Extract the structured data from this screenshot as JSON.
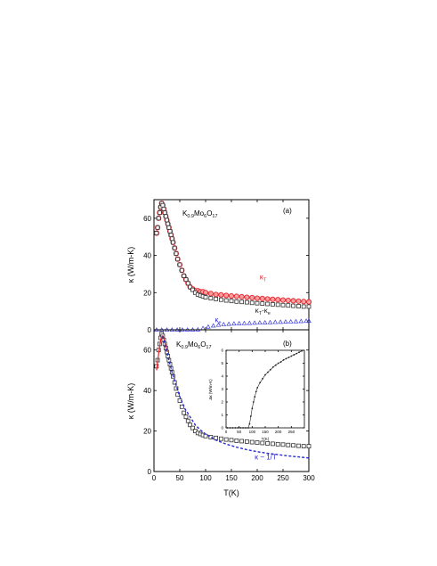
{
  "chart_data": [
    {
      "id": "a",
      "type": "scatter",
      "panel_label": "(a)",
      "title": {
        "main": "K",
        "s1": "0.9",
        "m1": "Mo",
        "s2": "6",
        "m2": "O",
        "s3": "17"
      },
      "xlabel": "",
      "ylabel": "κ (W/m-K)",
      "xlim": [
        0,
        300
      ],
      "ylim": [
        0,
        70
      ],
      "yticks": [
        0,
        20,
        40,
        60
      ],
      "grid": false,
      "colors": {
        "kT": "#e8202a",
        "kTke": "#333333",
        "ke": "#3b3bd6"
      },
      "annotations": [
        {
          "main": "κ",
          "sub": "T",
          "color": "#e8202a",
          "x": 205,
          "y": 27
        },
        {
          "main": "κ",
          "sub": "T",
          "main2": "-κ",
          "sub2": "e",
          "color": "#222222",
          "x": 196,
          "y": 9
        },
        {
          "main": "κ",
          "sub": "e",
          "color": "#2a2ad0",
          "x": 118,
          "y": 4
        }
      ],
      "series": [
        {
          "key": "kT",
          "marker": "circle",
          "x": [
            5,
            7,
            9,
            11,
            13,
            15,
            17,
            19,
            21,
            23,
            25,
            27,
            29,
            31,
            33,
            35,
            37,
            40,
            43,
            46,
            50,
            54,
            58,
            62,
            66,
            70,
            75,
            80,
            85,
            90,
            95,
            100,
            110,
            120,
            130,
            140,
            150,
            160,
            170,
            180,
            190,
            200,
            210,
            220,
            230,
            240,
            250,
            260,
            270,
            280,
            290,
            300
          ],
          "y": [
            52,
            55,
            60,
            63,
            66,
            68,
            67,
            65,
            63,
            61,
            59,
            57,
            55,
            53,
            51,
            49,
            47,
            44,
            41,
            38,
            35,
            32,
            29,
            27,
            25,
            23,
            22,
            21,
            21,
            20.5,
            20.5,
            20,
            19.5,
            19,
            18.8,
            18.5,
            18.2,
            18,
            17.8,
            17.5,
            17.3,
            17,
            16.8,
            16.6,
            16.4,
            16.2,
            16,
            15.8,
            15.6,
            15.4,
            15.2,
            15
          ]
        },
        {
          "key": "kTke",
          "marker": "square",
          "x": [
            5,
            7,
            9,
            11,
            13,
            15,
            17,
            19,
            21,
            23,
            25,
            27,
            29,
            31,
            33,
            35,
            37,
            40,
            43,
            46,
            50,
            54,
            58,
            62,
            66,
            70,
            75,
            80,
            85,
            90,
            95,
            100,
            110,
            120,
            130,
            140,
            150,
            160,
            170,
            180,
            190,
            200,
            210,
            220,
            230,
            240,
            250,
            260,
            270,
            280,
            290,
            300
          ],
          "y": [
            52,
            55,
            60,
            63,
            66,
            68,
            67,
            65,
            63,
            61,
            59,
            57,
            55,
            53,
            51,
            49,
            47,
            44,
            41,
            38,
            35,
            32,
            29,
            27,
            25,
            23,
            21.5,
            20,
            19,
            18.5,
            18,
            17.5,
            17,
            16.6,
            16.2,
            15.8,
            15.5,
            15.2,
            15,
            14.8,
            14.5,
            14.3,
            14.1,
            13.9,
            13.7,
            13.5,
            13.3,
            13.1,
            12.9,
            12.7,
            12.5,
            12.5
          ]
        },
        {
          "key": "ke",
          "marker": "triangle",
          "x": [
            5,
            15,
            25,
            35,
            45,
            55,
            65,
            75,
            85,
            95,
            105,
            115,
            125,
            135,
            145,
            155,
            165,
            175,
            185,
            195,
            205,
            215,
            225,
            235,
            245,
            255,
            265,
            275,
            285,
            295,
            300
          ],
          "y": [
            0,
            0,
            0,
            0,
            0,
            0,
            0,
            0,
            0.1,
            0.8,
            1.6,
            2.2,
            2.6,
            2.9,
            3.1,
            3.3,
            3.4,
            3.5,
            3.6,
            3.7,
            3.8,
            3.9,
            4.0,
            4.1,
            4.2,
            4.3,
            4.4,
            4.5,
            4.6,
            4.7,
            4.8
          ]
        }
      ]
    },
    {
      "id": "b",
      "type": "scatter",
      "panel_label": "(b)",
      "title": {
        "main": "K",
        "s1": "0.9",
        "m1": "Mo",
        "s2": "6",
        "m2": "O",
        "s3": "17"
      },
      "xlabel": "T(K)",
      "ylabel": "κ (W/m-K)",
      "xlim": [
        0,
        300
      ],
      "ylim": [
        0,
        70
      ],
      "xticks": [
        0,
        50,
        100,
        150,
        200,
        250,
        300
      ],
      "yticks": [
        0,
        20,
        40,
        60
      ],
      "grid": false,
      "annotations": [
        {
          "main": "κ",
          "sub": "T",
          "main2": "-κ",
          "sub2": "e",
          "color": "#222222",
          "x": 170,
          "y": 30
        },
        {
          "main": "κ ~ 1/T",
          "color": "#2a2ad0",
          "x": 195,
          "y": 6
        }
      ],
      "series": [
        {
          "key": "kTke",
          "marker": "square",
          "color": "#333333",
          "x": [
            5,
            7,
            9,
            11,
            13,
            15,
            17,
            19,
            21,
            23,
            25,
            27,
            29,
            31,
            33,
            35,
            37,
            40,
            43,
            46,
            50,
            54,
            58,
            62,
            66,
            70,
            75,
            80,
            85,
            90,
            95,
            100,
            110,
            120,
            130,
            140,
            150,
            160,
            170,
            180,
            190,
            200,
            210,
            220,
            230,
            240,
            250,
            260,
            270,
            280,
            290,
            300
          ],
          "y": [
            52,
            55,
            60,
            63,
            66,
            68,
            67,
            65,
            63,
            61,
            59,
            57,
            55,
            53,
            51,
            49,
            47,
            44,
            41,
            38,
            35,
            32,
            29,
            27,
            25,
            23,
            21.5,
            20,
            19,
            18.5,
            18,
            17.5,
            17,
            16.6,
            16.2,
            15.8,
            15.5,
            15.2,
            15,
            14.8,
            14.5,
            14.3,
            14.1,
            13.9,
            13.7,
            13.5,
            13.3,
            13.1,
            12.9,
            12.7,
            12.5,
            12.5
          ]
        },
        {
          "key": "fit_low",
          "marker": "line",
          "color": "#e8202a",
          "x": [
            5,
            8,
            11,
            14,
            17,
            20,
            23,
            26
          ],
          "y": [
            50,
            56,
            62,
            66,
            67,
            65,
            62,
            59
          ]
        },
        {
          "key": "kinv",
          "marker": "dash",
          "color": "#2a2ad0",
          "x": [
            17,
            20,
            25,
            30,
            35,
            40,
            45,
            50,
            60,
            70,
            80,
            90,
            100,
            120,
            140,
            160,
            180,
            200,
            220,
            240,
            260,
            280,
            300
          ],
          "y": [
            67,
            64,
            59,
            54,
            49,
            45,
            41,
            37,
            31,
            27,
            23,
            20.5,
            18.5,
            15.5,
            13.5,
            12,
            10.8,
            9.8,
            9,
            8.3,
            7.7,
            7.2,
            6.7
          ]
        }
      ],
      "inset": {
        "xlabel": "T(K)",
        "ylabel": "Δκ (W/m-K)",
        "xlim": [
          0,
          300
        ],
        "ylim": [
          0,
          6
        ],
        "xticks": [
          0,
          50,
          100,
          150,
          200,
          250
        ],
        "yticks": [
          0,
          1,
          2,
          3,
          4,
          5,
          6
        ],
        "series": [
          {
            "key": "dk",
            "marker": "dot",
            "color": "#222222",
            "x": [
              5,
              15,
              25,
              35,
              45,
              55,
              65,
              75,
              85,
              90,
              95,
              100,
              105,
              110,
              115,
              120,
              130,
              140,
              150,
              160,
              170,
              180,
              190,
              200,
              210,
              220,
              230,
              240,
              250,
              260,
              270,
              280,
              290
            ],
            "y": [
              0,
              0,
              0,
              0,
              0,
              0,
              0,
              0,
              0,
              0.3,
              0.9,
              1.5,
              2.0,
              2.4,
              2.8,
              3.1,
              3.5,
              3.8,
              4.1,
              4.3,
              4.5,
              4.7,
              4.85,
              5.0,
              5.1,
              5.25,
              5.35,
              5.45,
              5.55,
              5.65,
              5.75,
              5.85,
              5.95
            ]
          }
        ]
      }
    }
  ]
}
